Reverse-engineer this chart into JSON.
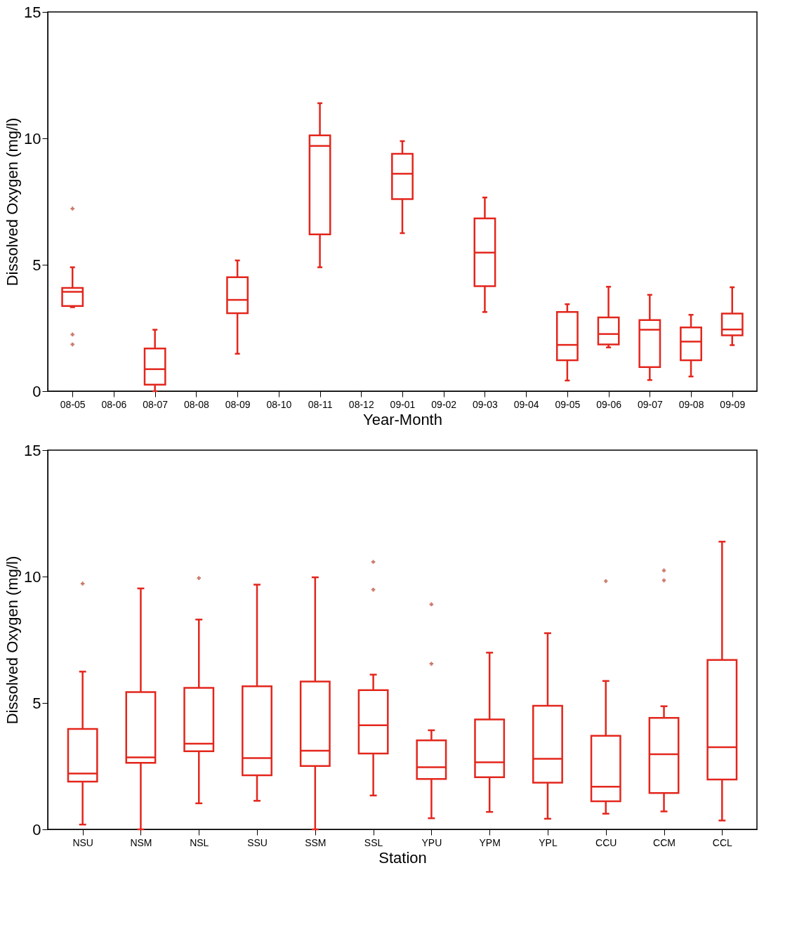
{
  "chart_data": [
    {
      "type": "box",
      "xlabel": "Year-Month",
      "ylabel": "Dissolved Oxygen (mg/l)",
      "ylim": [
        0,
        15
      ],
      "yticks": [
        0,
        5,
        10,
        15
      ],
      "grid": false,
      "categories": [
        "08-05",
        "08-06",
        "08-07",
        "08-08",
        "08-09",
        "08-10",
        "08-11",
        "08-12",
        "09-01",
        "09-02",
        "09-03",
        "09-04",
        "09-05",
        "09-06",
        "09-07",
        "09-08",
        "09-09"
      ],
      "series": [
        {
          "color": "#e3261c",
          "boxes": [
            {
              "low": 3.32,
              "q1": 3.37,
              "median": 3.93,
              "q3": 4.08,
              "high": 4.9,
              "outliers": [
                7.22,
                2.24,
                1.85
              ]
            },
            null,
            {
              "low": 0,
              "q1": 0.26,
              "median": 0.87,
              "q3": 1.69,
              "high": 2.43
            },
            null,
            {
              "low": 1.48,
              "q1": 3.08,
              "median": 3.61,
              "q3": 4.51,
              "high": 5.17
            },
            null,
            {
              "low": 4.9,
              "q1": 6.2,
              "median": 9.7,
              "q3": 10.12,
              "high": 11.39
            },
            null,
            {
              "low": 6.25,
              "q1": 7.6,
              "median": 8.6,
              "q3": 9.39,
              "high": 9.89
            },
            null,
            {
              "low": 3.13,
              "q1": 4.15,
              "median": 5.48,
              "q3": 6.83,
              "high": 7.66
            },
            null,
            {
              "low": 0.42,
              "q1": 1.22,
              "median": 1.83,
              "q3": 3.13,
              "high": 3.44
            },
            {
              "low": 1.73,
              "q1": 1.85,
              "median": 2.26,
              "q3": 2.92,
              "high": 4.13
            },
            {
              "low": 0.44,
              "q1": 0.95,
              "median": 2.43,
              "q3": 2.81,
              "high": 3.81
            },
            {
              "low": 0.58,
              "q1": 1.22,
              "median": 1.96,
              "q3": 2.52,
              "high": 3.02
            },
            {
              "low": 1.82,
              "q1": 2.21,
              "median": 2.44,
              "q3": 3.07,
              "high": 4.11
            }
          ]
        }
      ]
    },
    {
      "type": "box",
      "xlabel": "Station",
      "ylabel": "Dissolved Oxygen (mg/l)",
      "ylim": [
        0,
        15
      ],
      "yticks": [
        0,
        5,
        10,
        15
      ],
      "grid": false,
      "categories": [
        "NSU",
        "NSM",
        "NSL",
        "SSU",
        "SSM",
        "SSL",
        "YPU",
        "YPM",
        "YPL",
        "CCU",
        "CCM",
        "CCL"
      ],
      "series": [
        {
          "color": "#e3261c",
          "boxes": [
            {
              "low": 0.19,
              "q1": 1.89,
              "median": 2.21,
              "q3": 3.97,
              "high": 6.24,
              "outliers": [
                9.72
              ]
            },
            {
              "low": 0,
              "q1": 2.63,
              "median": 2.85,
              "q3": 5.43,
              "high": 9.53
            },
            {
              "low": 1.03,
              "q1": 3.09,
              "median": 3.39,
              "q3": 5.6,
              "high": 8.3,
              "outliers": [
                9.94
              ]
            },
            {
              "low": 1.13,
              "q1": 2.14,
              "median": 2.82,
              "q3": 5.66,
              "high": 9.68
            },
            {
              "low": 0,
              "q1": 2.51,
              "median": 3.11,
              "q3": 5.85,
              "high": 9.97
            },
            {
              "low": 1.34,
              "q1": 3.0,
              "median": 4.12,
              "q3": 5.51,
              "high": 6.12,
              "outliers": [
                10.58,
                9.48
              ]
            },
            {
              "low": 0.44,
              "q1": 1.99,
              "median": 2.46,
              "q3": 3.52,
              "high": 3.92,
              "outliers": [
                8.9,
                6.55
              ]
            },
            {
              "low": 0.69,
              "q1": 2.06,
              "median": 2.65,
              "q3": 4.35,
              "high": 6.99
            },
            {
              "low": 0.42,
              "q1": 1.85,
              "median": 2.79,
              "q3": 4.89,
              "high": 7.76
            },
            {
              "low": 0.62,
              "q1": 1.11,
              "median": 1.69,
              "q3": 3.7,
              "high": 5.87,
              "outliers": [
                9.82
              ]
            },
            {
              "low": 0.71,
              "q1": 1.44,
              "median": 2.97,
              "q3": 4.41,
              "high": 4.87,
              "outliers": [
                10.24,
                9.85
              ]
            },
            {
              "low": 0.35,
              "q1": 1.97,
              "median": 3.25,
              "q3": 6.7,
              "high": 11.38
            }
          ]
        }
      ]
    }
  ]
}
